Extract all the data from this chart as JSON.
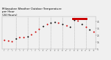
{
  "title": "Milwaukee Weather Outdoor Temperature\nper Hour\n(24 Hours)",
  "title_fontsize": 3.0,
  "title_color": "#000000",
  "background_color": "#f0f0f0",
  "plot_bg_color": "#f0f0f0",
  "hours": [
    0,
    1,
    2,
    3,
    4,
    5,
    6,
    7,
    8,
    9,
    10,
    11,
    12,
    13,
    14,
    15,
    16,
    17,
    18,
    19,
    20,
    21,
    22,
    23
  ],
  "temps": [
    18,
    17,
    16,
    20,
    22,
    22,
    23,
    26,
    30,
    34,
    38,
    41,
    43,
    44,
    43,
    41,
    39,
    37,
    47,
    46,
    41,
    37,
    33,
    30
  ],
  "dot_colors": [
    "#cc0000",
    "#cc0000",
    "#cc0000",
    "#000000",
    "#cc0000",
    "#cc0000",
    "#000000",
    "#cc0000",
    "#cc0000",
    "#cc0000",
    "#000000",
    "#cc0000",
    "#000000",
    "#000000",
    "#cc0000",
    "#000000",
    "#cc0000",
    "#000000",
    "#000000",
    "#cc0000",
    "#000000",
    "#cc0000",
    "#000000",
    "#cc0000"
  ],
  "highlight_xstart": 17.5,
  "highlight_xend": 21.5,
  "highlight_color": "#cc0000",
  "highlight_ymin": 47.5,
  "highlight_ymax": 50.5,
  "ylim": [
    10,
    52
  ],
  "xlim": [
    -0.5,
    23.5
  ],
  "ytick_labels": [
    "5",
    "15",
    "25",
    "35",
    "45"
  ],
  "ytick_vals": [
    5,
    15,
    25,
    35,
    45
  ],
  "xtick_hours": [
    0,
    1,
    2,
    3,
    4,
    5,
    6,
    7,
    8,
    9,
    10,
    11,
    12,
    13,
    14,
    15,
    16,
    17,
    18,
    19,
    20,
    21,
    22,
    23
  ],
  "grid_hours": [
    3,
    6,
    9,
    12,
    15,
    18,
    21
  ],
  "dot_size": 1.5
}
